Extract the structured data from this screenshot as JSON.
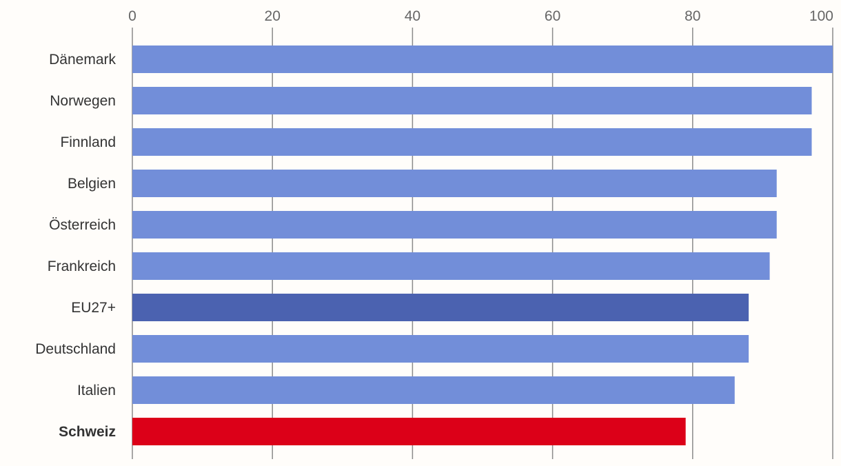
{
  "chart_data": {
    "type": "bar",
    "orientation": "horizontal",
    "title": "",
    "xlabel": "",
    "ylabel": "",
    "xlim": [
      0,
      100
    ],
    "ticks": [
      "0",
      "20",
      "40",
      "60",
      "80",
      "100"
    ],
    "tick_values": [
      0,
      20,
      40,
      60,
      80,
      100
    ],
    "grid": true,
    "axis_position": "top",
    "categories": [
      "Dänemark",
      "Norwegen",
      "Finnland",
      "Belgien",
      "Österreich",
      "Frankreich",
      "EU27+",
      "Deutschland",
      "Italien",
      "Schweiz"
    ],
    "values": [
      100,
      97,
      97,
      92,
      92,
      91,
      88,
      88,
      86,
      79
    ],
    "colors": [
      "#728ed9",
      "#728ed9",
      "#728ed9",
      "#728ed9",
      "#728ed9",
      "#728ed9",
      "#4b62b0",
      "#728ed9",
      "#728ed9",
      "#dc0018"
    ],
    "highlight": "Schweiz"
  }
}
